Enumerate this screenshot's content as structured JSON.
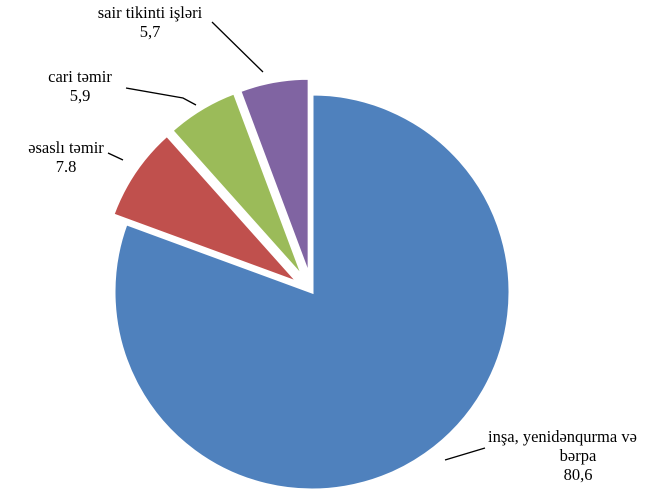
{
  "chart_data": {
    "type": "pie",
    "slices": [
      {
        "label_lines": [
          "inşa, yenidənqurma və",
          "bərpa"
        ],
        "value_text": "80,6",
        "value": 80.6,
        "color": "#4F81BD",
        "exploded": false
      },
      {
        "label_lines": [
          "əsaslı təmir"
        ],
        "value_text": "7.8",
        "value": 7.8,
        "color": "#C0504D",
        "exploded": true
      },
      {
        "label_lines": [
          "cari təmir"
        ],
        "value_text": "5,9",
        "value": 5.9,
        "color": "#9BBB59",
        "exploded": true
      },
      {
        "label_lines": [
          "sair tikinti işləri"
        ],
        "value_text": "5,7",
        "value": 5.7,
        "color": "#8064A2",
        "exploded": true
      }
    ]
  }
}
